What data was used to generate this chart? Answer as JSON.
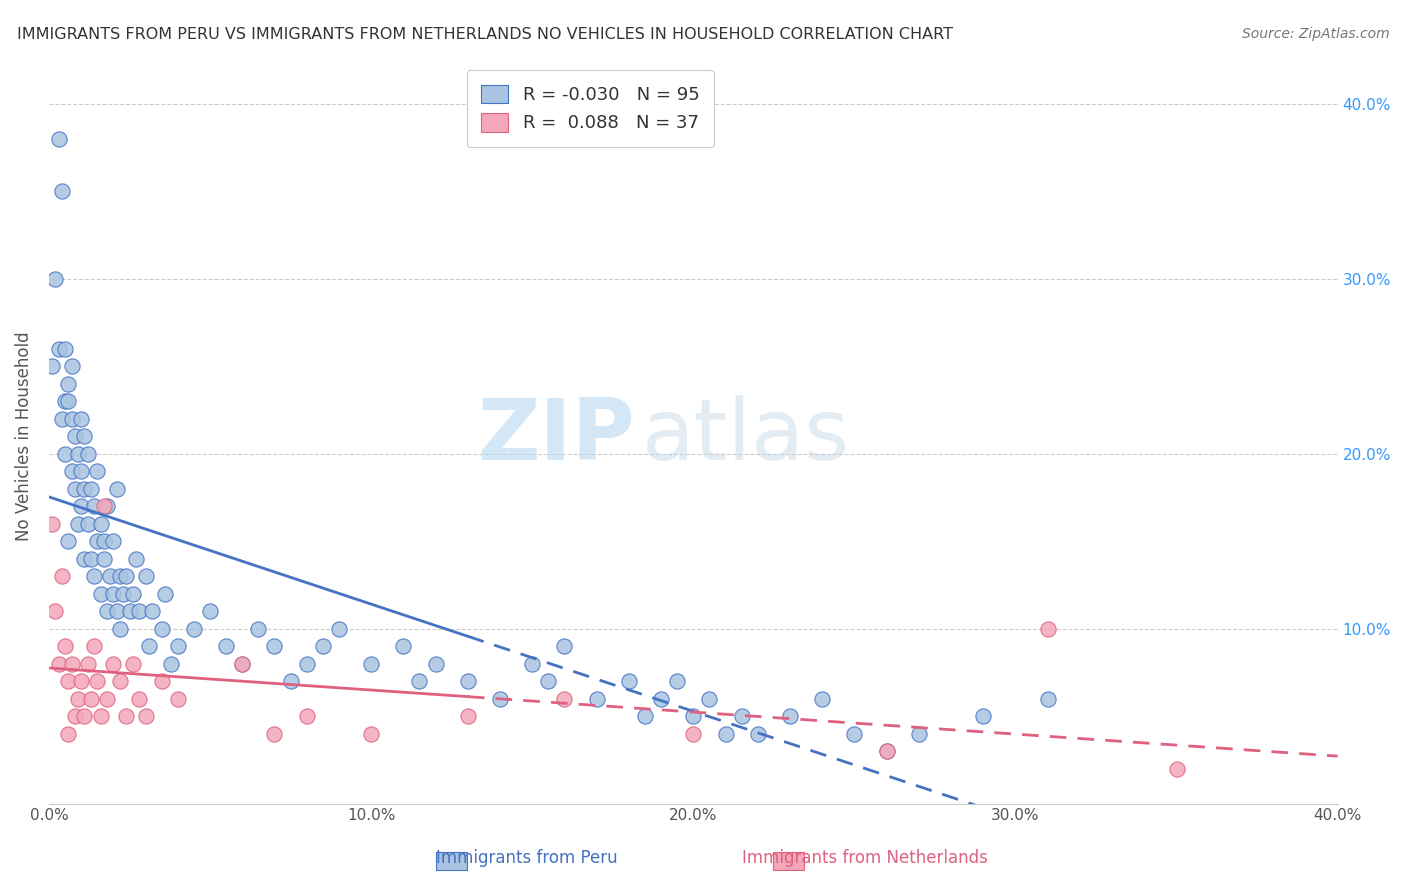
{
  "title": "IMMIGRANTS FROM PERU VS IMMIGRANTS FROM NETHERLANDS NO VEHICLES IN HOUSEHOLD CORRELATION CHART",
  "source": "Source: ZipAtlas.com",
  "ylabel": "No Vehicles in Household",
  "right_ytick_vals": [
    0.1,
    0.2,
    0.3,
    0.4
  ],
  "legend_peru_R": "-0.030",
  "legend_peru_N": "95",
  "legend_neth_R": "0.088",
  "legend_neth_N": "37",
  "peru_color": "#a8c4e0",
  "peru_line_color": "#4472c4",
  "neth_color": "#f4a7b9",
  "neth_line_color": "#e06080",
  "watermark_zip": "ZIP",
  "watermark_atlas": "atlas",
  "xlim": [
    0.0,
    0.4
  ],
  "ylim": [
    0.0,
    0.42
  ],
  "peru_x": [
    0.001,
    0.002,
    0.003,
    0.003,
    0.004,
    0.004,
    0.005,
    0.005,
    0.005,
    0.006,
    0.006,
    0.006,
    0.007,
    0.007,
    0.007,
    0.008,
    0.008,
    0.009,
    0.009,
    0.01,
    0.01,
    0.01,
    0.011,
    0.011,
    0.011,
    0.012,
    0.012,
    0.013,
    0.013,
    0.014,
    0.014,
    0.015,
    0.015,
    0.016,
    0.016,
    0.017,
    0.017,
    0.018,
    0.018,
    0.019,
    0.02,
    0.02,
    0.021,
    0.021,
    0.022,
    0.022,
    0.023,
    0.024,
    0.025,
    0.026,
    0.027,
    0.028,
    0.03,
    0.031,
    0.032,
    0.035,
    0.036,
    0.038,
    0.04,
    0.045,
    0.05,
    0.055,
    0.06,
    0.065,
    0.07,
    0.075,
    0.08,
    0.085,
    0.09,
    0.1,
    0.11,
    0.115,
    0.12,
    0.13,
    0.14,
    0.15,
    0.155,
    0.16,
    0.17,
    0.18,
    0.185,
    0.19,
    0.195,
    0.2,
    0.205,
    0.21,
    0.215,
    0.22,
    0.23,
    0.24,
    0.25,
    0.26,
    0.27,
    0.29,
    0.31
  ],
  "peru_y": [
    0.25,
    0.3,
    0.38,
    0.26,
    0.35,
    0.22,
    0.26,
    0.23,
    0.2,
    0.24,
    0.23,
    0.15,
    0.22,
    0.19,
    0.25,
    0.21,
    0.18,
    0.2,
    0.16,
    0.22,
    0.17,
    0.19,
    0.18,
    0.21,
    0.14,
    0.2,
    0.16,
    0.18,
    0.14,
    0.17,
    0.13,
    0.19,
    0.15,
    0.16,
    0.12,
    0.14,
    0.15,
    0.17,
    0.11,
    0.13,
    0.15,
    0.12,
    0.18,
    0.11,
    0.13,
    0.1,
    0.12,
    0.13,
    0.11,
    0.12,
    0.14,
    0.11,
    0.13,
    0.09,
    0.11,
    0.1,
    0.12,
    0.08,
    0.09,
    0.1,
    0.11,
    0.09,
    0.08,
    0.1,
    0.09,
    0.07,
    0.08,
    0.09,
    0.1,
    0.08,
    0.09,
    0.07,
    0.08,
    0.07,
    0.06,
    0.08,
    0.07,
    0.09,
    0.06,
    0.07,
    0.05,
    0.06,
    0.07,
    0.05,
    0.06,
    0.04,
    0.05,
    0.04,
    0.05,
    0.06,
    0.04,
    0.03,
    0.04,
    0.05,
    0.06
  ],
  "neth_x": [
    0.001,
    0.002,
    0.003,
    0.004,
    0.005,
    0.006,
    0.006,
    0.007,
    0.008,
    0.009,
    0.01,
    0.011,
    0.012,
    0.013,
    0.014,
    0.015,
    0.016,
    0.017,
    0.018,
    0.02,
    0.022,
    0.024,
    0.026,
    0.028,
    0.03,
    0.035,
    0.04,
    0.06,
    0.07,
    0.08,
    0.1,
    0.13,
    0.16,
    0.2,
    0.26,
    0.31,
    0.35
  ],
  "neth_y": [
    0.16,
    0.11,
    0.08,
    0.13,
    0.09,
    0.07,
    0.04,
    0.08,
    0.05,
    0.06,
    0.07,
    0.05,
    0.08,
    0.06,
    0.09,
    0.07,
    0.05,
    0.17,
    0.06,
    0.08,
    0.07,
    0.05,
    0.08,
    0.06,
    0.05,
    0.07,
    0.06,
    0.08,
    0.04,
    0.05,
    0.04,
    0.05,
    0.06,
    0.04,
    0.03,
    0.1,
    0.02
  ],
  "background_color": "#ffffff",
  "grid_color": "#cccccc",
  "title_color": "#333333",
  "axis_color": "#555555",
  "source_color": "#777777"
}
